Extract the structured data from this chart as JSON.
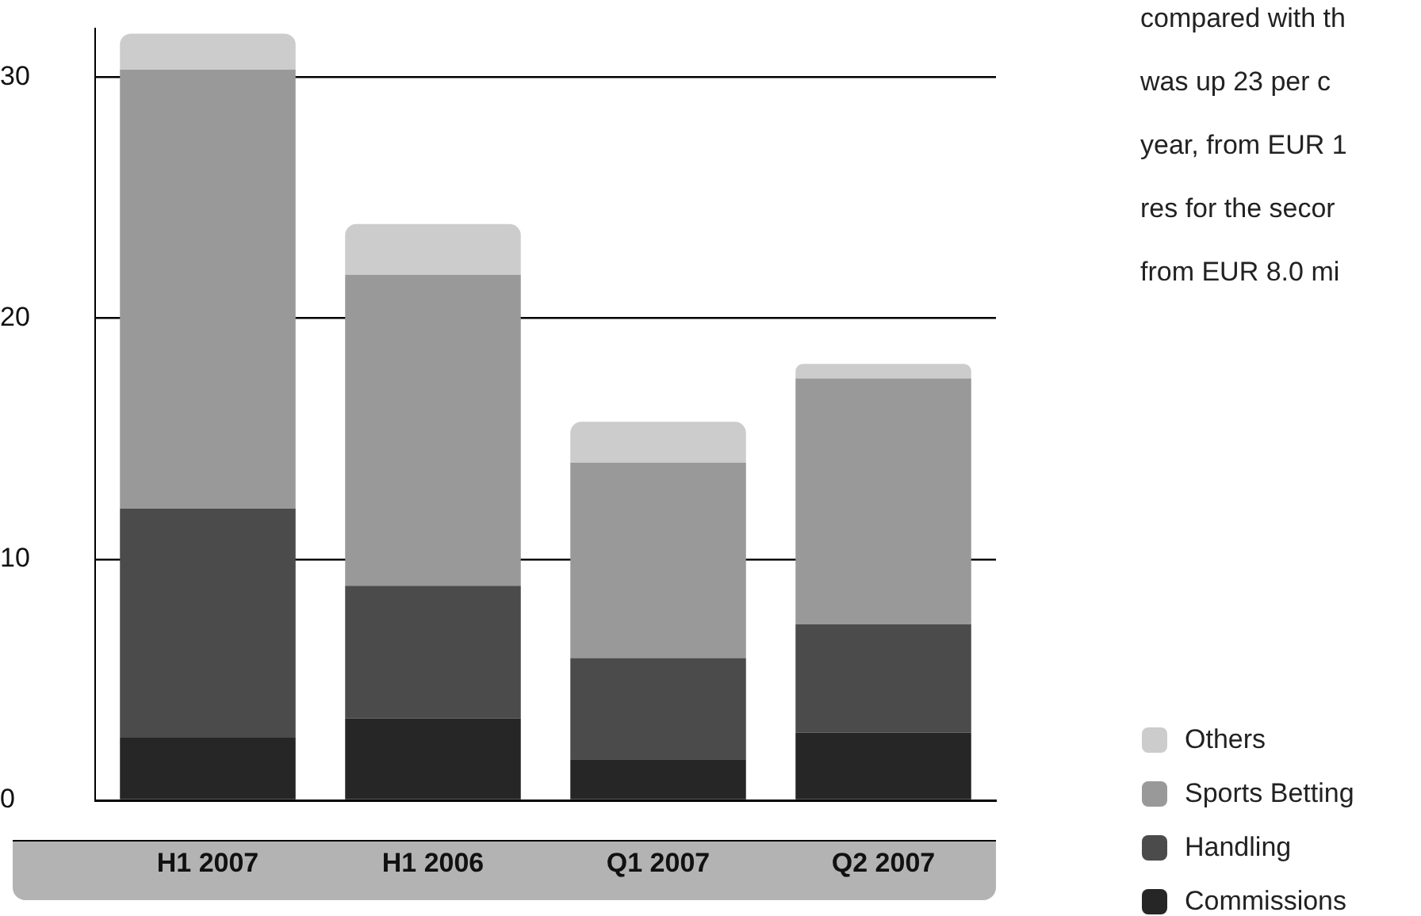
{
  "chart_data": {
    "type": "bar",
    "stacked": true,
    "categories": [
      "H1 2007",
      "H1 2006",
      "Q1 2007",
      "Q2 2007"
    ],
    "series": [
      {
        "name": "Commissions",
        "color": "#262626",
        "values": [
          2.6,
          3.4,
          1.7,
          2.8
        ]
      },
      {
        "name": "Handling",
        "color": "#4b4b4b",
        "values": [
          9.5,
          5.5,
          4.2,
          4.5
        ]
      },
      {
        "name": "Sports Betting",
        "color": "#999999",
        "values": [
          18.2,
          12.9,
          8.1,
          10.2
        ]
      },
      {
        "name": "Others",
        "color": "#cccccc",
        "values": [
          1.5,
          2.1,
          1.7,
          0.6
        ]
      }
    ],
    "ylim": [
      0,
      32
    ],
    "yticks": [
      0,
      10,
      20,
      30
    ],
    "grid": "y",
    "legend": "bottom right",
    "annotations": [
      "compared with th",
      "was up 23 per c",
      "year, from EUR 1",
      "res for the secor",
      "from EUR 8.0 mi"
    ]
  }
}
